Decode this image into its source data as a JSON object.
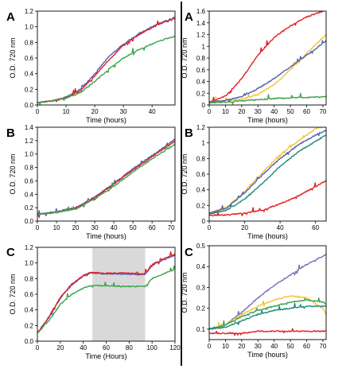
{
  "colors": {
    "blue": "#4f60b4",
    "red": "#e21f26",
    "green": "#3ca34a",
    "yellow": "#f6c233",
    "teal": "#1f8a7a",
    "purple": "#7a6fb5",
    "shade": "#d9d9d9"
  },
  "chart_data": [
    {
      "id": "left-A",
      "panel_label": "A",
      "type": "line",
      "xlabel": "Time (hours)",
      "ylabel": "O.D. 720 nm",
      "xlim": [
        0,
        48
      ],
      "ylim": [
        0,
        1.2
      ],
      "xticks": [
        0,
        10,
        20,
        30,
        40
      ],
      "yticks": [
        0,
        0.2,
        0.4,
        0.6,
        0.8,
        1.0,
        1.2
      ],
      "ytick_labels": [
        "0.0",
        "0.2",
        "0.4",
        "0.6",
        "0.8",
        "1.0",
        "1.2"
      ],
      "grid": false,
      "series": [
        {
          "color": "blue",
          "x": [
            0,
            5,
            10,
            15,
            20,
            25,
            30,
            35,
            40,
            45,
            48
          ],
          "y": [
            0.03,
            0.05,
            0.1,
            0.2,
            0.4,
            0.62,
            0.78,
            0.9,
            1.0,
            1.08,
            1.12
          ]
        },
        {
          "color": "red",
          "x": [
            0,
            5,
            10,
            15,
            20,
            25,
            30,
            35,
            40,
            45,
            48
          ],
          "y": [
            0.03,
            0.05,
            0.09,
            0.18,
            0.37,
            0.58,
            0.76,
            0.89,
            0.99,
            1.07,
            1.11
          ]
        },
        {
          "color": "green",
          "x": [
            0,
            5,
            10,
            15,
            20,
            25,
            30,
            35,
            40,
            45,
            48
          ],
          "y": [
            0.03,
            0.05,
            0.09,
            0.16,
            0.3,
            0.46,
            0.6,
            0.7,
            0.78,
            0.85,
            0.88
          ]
        }
      ]
    },
    {
      "id": "left-B",
      "panel_label": "B",
      "type": "line",
      "xlabel": "Time (hours)",
      "ylabel": "O.D. 720 nm",
      "xlim": [
        0,
        72
      ],
      "ylim": [
        0,
        1.4
      ],
      "xticks": [
        0,
        10,
        20,
        30,
        40,
        50,
        60,
        70
      ],
      "yticks": [
        0,
        0.2,
        0.4,
        0.6,
        0.8,
        1.0,
        1.2,
        1.4
      ],
      "ytick_labels": [
        "0.0",
        "0.2",
        "0.4",
        "0.6",
        "0.8",
        "1.0",
        "1.2",
        "1.4"
      ],
      "grid": false,
      "series": [
        {
          "color": "blue",
          "x": [
            0,
            10,
            20,
            30,
            40,
            50,
            60,
            70,
            72
          ],
          "y": [
            0.1,
            0.14,
            0.2,
            0.36,
            0.56,
            0.78,
            0.98,
            1.18,
            1.22
          ]
        },
        {
          "color": "red",
          "x": [
            0,
            10,
            20,
            30,
            40,
            50,
            60,
            70,
            72
          ],
          "y": [
            0.1,
            0.13,
            0.19,
            0.35,
            0.55,
            0.76,
            0.96,
            1.15,
            1.19
          ]
        },
        {
          "color": "green",
          "x": [
            0,
            10,
            20,
            30,
            40,
            50,
            60,
            70,
            72
          ],
          "y": [
            0.1,
            0.13,
            0.18,
            0.33,
            0.52,
            0.73,
            0.93,
            1.11,
            1.15
          ]
        }
      ]
    },
    {
      "id": "left-C",
      "panel_label": "C",
      "type": "line",
      "xlabel": "Time (Hours)",
      "ylabel": "O.D. 720 nm",
      "xlim": [
        0,
        120
      ],
      "ylim": [
        0,
        1.2
      ],
      "xticks": [
        0,
        20,
        40,
        60,
        80,
        100,
        120
      ],
      "yticks": [
        0,
        0.2,
        0.4,
        0.6,
        0.8,
        1.0,
        1.2
      ],
      "ytick_labels": [
        "0.0",
        "0.2",
        "0.4",
        "0.6",
        "0.8",
        "1.0",
        "1.2"
      ],
      "grid": false,
      "shaded_region": [
        48,
        94
      ],
      "series": [
        {
          "color": "blue",
          "x": [
            0,
            10,
            20,
            30,
            40,
            46,
            50,
            60,
            70,
            80,
            90,
            94,
            100,
            110,
            120
          ],
          "y": [
            0.1,
            0.3,
            0.55,
            0.72,
            0.83,
            0.87,
            0.87,
            0.86,
            0.86,
            0.86,
            0.85,
            0.85,
            0.97,
            1.04,
            1.1
          ]
        },
        {
          "color": "red",
          "x": [
            0,
            10,
            20,
            30,
            40,
            46,
            50,
            60,
            70,
            80,
            90,
            94,
            100,
            110,
            120
          ],
          "y": [
            0.1,
            0.31,
            0.56,
            0.73,
            0.84,
            0.88,
            0.88,
            0.87,
            0.87,
            0.87,
            0.86,
            0.86,
            0.98,
            1.05,
            1.11
          ]
        },
        {
          "color": "green",
          "x": [
            0,
            10,
            20,
            30,
            40,
            46,
            50,
            60,
            70,
            80,
            90,
            94,
            100,
            110,
            120
          ],
          "y": [
            0.1,
            0.26,
            0.47,
            0.6,
            0.68,
            0.71,
            0.71,
            0.71,
            0.7,
            0.7,
            0.7,
            0.7,
            0.8,
            0.86,
            0.92
          ]
        }
      ]
    },
    {
      "id": "right-A",
      "panel_label": "A",
      "type": "line",
      "xlabel": "Time (hours)",
      "ylabel": "O.D. 720 nm",
      "xlim": [
        0,
        72
      ],
      "ylim": [
        0,
        1.6
      ],
      "xticks": [
        0,
        10,
        20,
        30,
        40,
        50,
        60,
        70
      ],
      "yticks": [
        0,
        0.2,
        0.4,
        0.6,
        0.8,
        1.0,
        1.2,
        1.4,
        1.6
      ],
      "ytick_labels": [
        "0",
        "0.2",
        "0.4",
        "0.6",
        "0.8",
        "1",
        "1.2",
        "1.4",
        "1.6"
      ],
      "grid": false,
      "series": [
        {
          "color": "red",
          "x": [
            0,
            10,
            20,
            30,
            40,
            50,
            60,
            70,
            72
          ],
          "y": [
            0.05,
            0.15,
            0.45,
            0.85,
            1.15,
            1.35,
            1.5,
            1.6,
            1.62
          ]
        },
        {
          "color": "yellow",
          "x": [
            0,
            10,
            20,
            30,
            40,
            50,
            60,
            70,
            72
          ],
          "y": [
            0.05,
            0.07,
            0.1,
            0.18,
            0.35,
            0.6,
            0.88,
            1.15,
            1.2
          ]
        },
        {
          "color": "blue",
          "x": [
            0,
            10,
            20,
            30,
            40,
            50,
            60,
            70,
            72
          ],
          "y": [
            0.05,
            0.08,
            0.14,
            0.28,
            0.45,
            0.65,
            0.85,
            1.05,
            1.1
          ]
        },
        {
          "color": "green",
          "x": [
            0,
            10,
            20,
            30,
            40,
            50,
            60,
            70,
            72
          ],
          "y": [
            0.04,
            0.05,
            0.07,
            0.09,
            0.11,
            0.12,
            0.13,
            0.14,
            0.14
          ]
        }
      ]
    },
    {
      "id": "right-B",
      "panel_label": "B",
      "type": "line",
      "xlabel": "Time (hours)",
      "ylabel": "O.D. 720 nm",
      "xlim": [
        0,
        66
      ],
      "ylim": [
        0,
        1.2
      ],
      "xticks": [
        0,
        20,
        40,
        60
      ],
      "yticks": [
        0,
        0.2,
        0.4,
        0.6,
        0.8,
        1.0,
        1.2
      ],
      "ytick_labels": [
        "0",
        "0.2",
        "0.4",
        "0.6",
        "0.8",
        "1",
        "1.2"
      ],
      "grid": false,
      "series": [
        {
          "color": "yellow",
          "x": [
            0,
            10,
            20,
            30,
            40,
            50,
            60,
            66
          ],
          "y": [
            0.1,
            0.18,
            0.38,
            0.62,
            0.85,
            1.02,
            1.18,
            1.24
          ]
        },
        {
          "color": "blue",
          "x": [
            0,
            10,
            20,
            30,
            40,
            50,
            60,
            66
          ],
          "y": [
            0.1,
            0.17,
            0.36,
            0.59,
            0.8,
            0.97,
            1.1,
            1.16
          ]
        },
        {
          "color": "teal",
          "x": [
            0,
            10,
            20,
            30,
            40,
            50,
            60,
            66
          ],
          "y": [
            0.09,
            0.14,
            0.28,
            0.48,
            0.7,
            0.88,
            1.02,
            1.1
          ]
        },
        {
          "color": "red",
          "x": [
            0,
            10,
            20,
            30,
            40,
            50,
            60,
            66
          ],
          "y": [
            0.07,
            0.08,
            0.1,
            0.14,
            0.22,
            0.32,
            0.44,
            0.52
          ]
        }
      ]
    },
    {
      "id": "right-C",
      "panel_label": "C",
      "type": "line",
      "xlabel": "Time (hours)",
      "ylabel": "O.D. 720 nm",
      "xlim": [
        0,
        72
      ],
      "ylim": [
        0.05,
        0.5
      ],
      "xticks": [
        0,
        10,
        20,
        30,
        40,
        50,
        60,
        70
      ],
      "yticks": [
        0.1,
        0.2,
        0.3,
        0.4,
        0.5
      ],
      "ytick_labels": [
        "0.1",
        "0.2",
        "0.3",
        "0.4",
        "0.5"
      ],
      "grid": false,
      "series": [
        {
          "color": "purple",
          "x": [
            0,
            10,
            20,
            30,
            40,
            50,
            60,
            70,
            72
          ],
          "y": [
            0.1,
            0.12,
            0.18,
            0.25,
            0.31,
            0.36,
            0.41,
            0.45,
            0.46
          ]
        },
        {
          "color": "yellow",
          "x": [
            0,
            10,
            20,
            30,
            40,
            50,
            60,
            70,
            72
          ],
          "y": [
            0.1,
            0.12,
            0.17,
            0.21,
            0.24,
            0.26,
            0.25,
            0.2,
            0.17
          ]
        },
        {
          "color": "green",
          "x": [
            0,
            10,
            20,
            30,
            40,
            50,
            60,
            70,
            72
          ],
          "y": [
            0.1,
            0.12,
            0.16,
            0.19,
            0.21,
            0.23,
            0.24,
            0.23,
            0.22
          ]
        },
        {
          "color": "teal",
          "x": [
            0,
            10,
            20,
            30,
            40,
            50,
            60,
            70,
            72
          ],
          "y": [
            0.1,
            0.11,
            0.14,
            0.17,
            0.19,
            0.2,
            0.21,
            0.21,
            0.21
          ]
        },
        {
          "color": "red",
          "x": [
            0,
            10,
            20,
            30,
            40,
            50,
            60,
            70,
            72
          ],
          "y": [
            0.08,
            0.08,
            0.08,
            0.09,
            0.09,
            0.09,
            0.09,
            0.09,
            0.09
          ]
        }
      ]
    }
  ]
}
